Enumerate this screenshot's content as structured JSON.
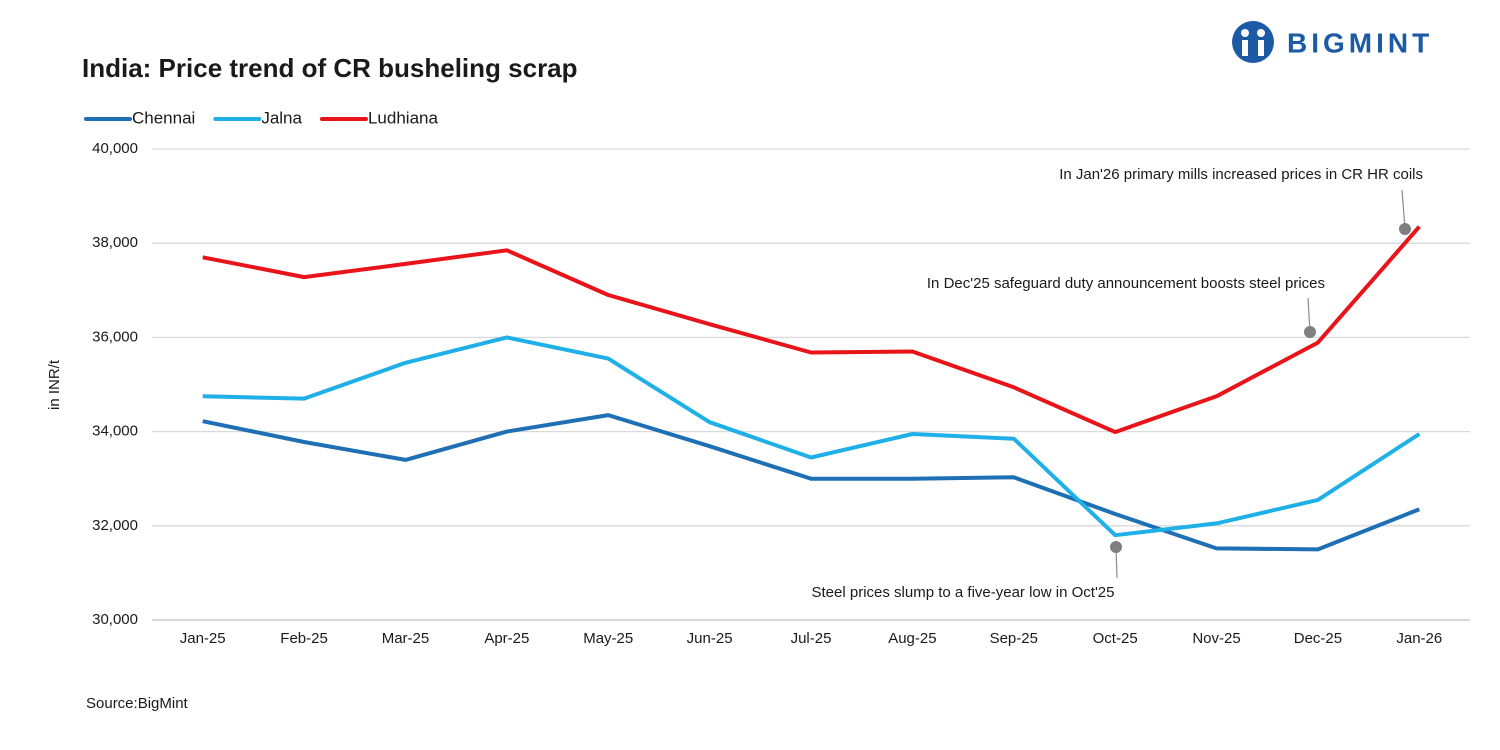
{
  "chart_data": {
    "type": "line",
    "title": "India: Price trend of CR busheling scrap",
    "brand": "BIGMINT",
    "y_label": "in INR/t",
    "source": "Source:BigMint",
    "categories": [
      "Jan-25",
      "Feb-25",
      "Mar-25",
      "Apr-25",
      "May-25",
      "Jun-25",
      "Jul-25",
      "Aug-25",
      "Sep-25",
      "Oct-25",
      "Nov-25",
      "Dec-25",
      "Jan-26"
    ],
    "series": [
      {
        "name": "Chennai",
        "color": "#1f6fb5",
        "values": [
          34220,
          33780,
          33400,
          34000,
          34350,
          33690,
          33000,
          33000,
          33030,
          32250,
          31520,
          31500,
          32350
        ]
      },
      {
        "name": "Jalna",
        "color": "#1fb0e8",
        "values": [
          34750,
          34700,
          35460,
          36000,
          35550,
          34200,
          33450,
          33950,
          33850,
          31800,
          32050,
          32550,
          33950
        ]
      },
      {
        "name": "Ludhiana",
        "color": "#e8141a",
        "values": [
          37700,
          37280,
          37560,
          37850,
          36900,
          36280,
          35680,
          35700,
          34940,
          33990,
          34750,
          35890,
          38350
        ]
      }
    ],
    "ylim": [
      30000,
      40000
    ],
    "yticks": [
      {
        "value": 30000,
        "label": "30,000"
      },
      {
        "value": 32000,
        "label": "32,000"
      },
      {
        "value": 34000,
        "label": "34,000"
      },
      {
        "value": 36000,
        "label": "36,000"
      },
      {
        "value": 38000,
        "label": "38,000"
      },
      {
        "value": 40000,
        "label": "40,000"
      }
    ],
    "grid": true,
    "legend": "top-left",
    "annotations": [
      "In Jan'26 primary mills increased prices in CR HR coils",
      "In Dec'25 safeguard duty announcement boosts steel prices",
      "Steel prices slump to a five-year low in Oct'25"
    ]
  }
}
